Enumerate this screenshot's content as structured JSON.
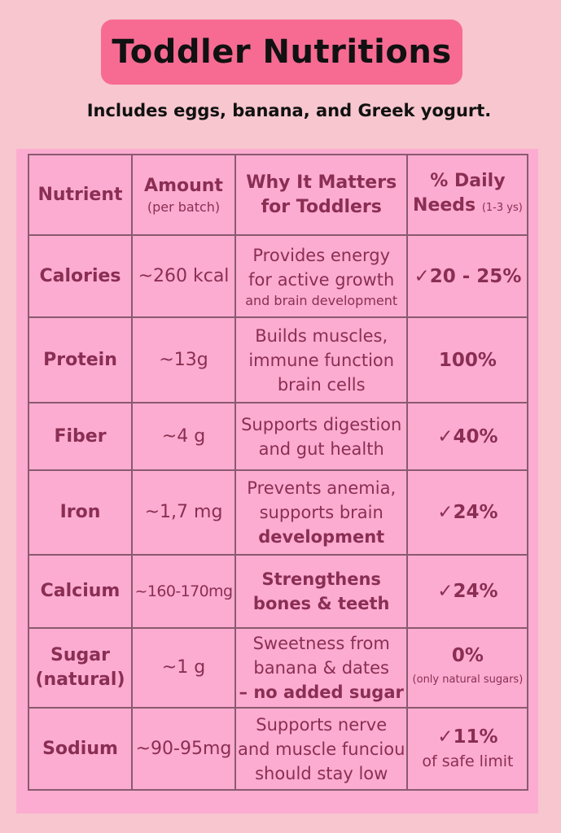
{
  "header": {
    "title": "Toddler Nutritions",
    "subtitle": "Includes eggs, banana, and Greek yogurt."
  },
  "table": {
    "columns": {
      "nutrient": "Nutrient",
      "amount": "Amount",
      "amount_note": "(per batch)",
      "why_1": "Why It Matters",
      "why_2": "for Toddlers",
      "daily_1": "% Daily",
      "daily_2": "Needs",
      "daily_note": "(1-3 ys)"
    },
    "rows": [
      {
        "nutrient": "Calories",
        "amount": "~260 kcal",
        "why_1": "Provides energy",
        "why_2": "for active growth",
        "why_3": "and brain development",
        "pct": "✓20 - 25%",
        "pct_note": ""
      },
      {
        "nutrient": "Protein",
        "amount": "~13g",
        "why_1": "Builds muscles,",
        "why_2": "immune function",
        "why_3": "brain cells",
        "pct": "100%",
        "pct_note": ""
      },
      {
        "nutrient": "Fiber",
        "amount": "~4 g",
        "why_1": "Supports digestion",
        "why_2": "and gut health",
        "why_3": "",
        "pct": "✓40%",
        "pct_note": ""
      },
      {
        "nutrient": "Iron",
        "amount": "~1,7 mg",
        "why_1": "Prevents anemia,",
        "why_2": "supports brain",
        "why_3": "development",
        "pct": "✓24%",
        "pct_note": ""
      },
      {
        "nutrient": "Calcium",
        "amount": "~160-170mg",
        "why_1": "Strengthens",
        "why_2": "bones & teeth",
        "why_3": "",
        "pct": "✓24%",
        "pct_note": ""
      },
      {
        "nutrient": "Sugar",
        "nutrient_2": "(natural)",
        "amount": "~1 g",
        "why_1": "Sweetness from",
        "why_2": "banana & dates",
        "why_3": "– no added sugar",
        "pct": "0%",
        "pct_note": "(only natural sugars)"
      },
      {
        "nutrient": "Sodium",
        "amount": "~90-95mg",
        "why_1": "Supports nerve",
        "why_2": "and muscle funciou",
        "why_3": "should stay low",
        "pct": "✓11%",
        "pct_note": "of safe limit"
      }
    ]
  }
}
